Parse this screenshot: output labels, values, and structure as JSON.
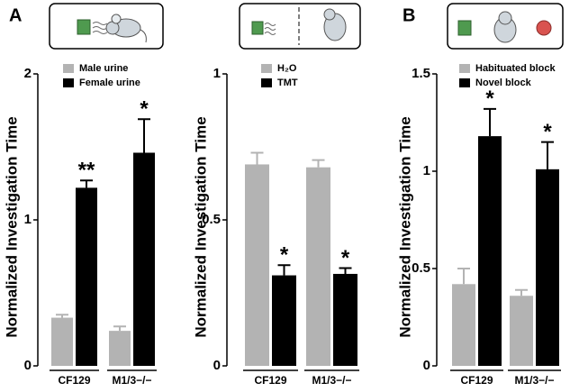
{
  "chart_data": [
    {
      "type": "bar",
      "panel": "A",
      "ylabel": "Normalized Investigation Time",
      "categories": [
        "CF129",
        "M1/3−/−"
      ],
      "series": [
        {
          "name": "Male urine",
          "color": "#b3b3b3",
          "values": [
            0.33,
            0.24
          ],
          "errors": [
            0.02,
            0.03
          ]
        },
        {
          "name": "Female urine",
          "color": "#000000",
          "values": [
            1.22,
            1.46
          ],
          "errors": [
            0.05,
            0.23
          ],
          "annotations": [
            "**",
            "*"
          ]
        }
      ],
      "ylim": [
        0,
        2
      ],
      "yticks": [
        0,
        1,
        2
      ]
    },
    {
      "type": "bar",
      "ylabel": "Normalized Investigation Time",
      "categories": [
        "CF129",
        "M1/3−/−"
      ],
      "series": [
        {
          "name": "H₂O",
          "color": "#b3b3b3",
          "values": [
            0.69,
            0.68
          ],
          "errors": [
            0.04,
            0.025
          ]
        },
        {
          "name": "TMT",
          "color": "#000000",
          "values": [
            0.31,
            0.315
          ],
          "errors": [
            0.035,
            0.02
          ],
          "annotations": [
            "*",
            "*"
          ]
        }
      ],
      "ylim": [
        0,
        1
      ],
      "yticks": [
        0,
        0.5,
        1
      ]
    },
    {
      "type": "bar",
      "panel": "B",
      "ylabel": "Normalized Investigation Time",
      "categories": [
        "CF129",
        "M1/3−/−"
      ],
      "series": [
        {
          "name": "Habituated block",
          "color": "#b3b3b3",
          "values": [
            0.42,
            0.36
          ],
          "errors": [
            0.08,
            0.03
          ]
        },
        {
          "name": "Novel block",
          "color": "#000000",
          "values": [
            1.18,
            1.01
          ],
          "errors": [
            0.14,
            0.14
          ],
          "annotations": [
            "*",
            "*"
          ]
        }
      ],
      "ylim": [
        0,
        1.5
      ],
      "yticks": [
        0,
        0.5,
        1,
        1.5
      ]
    }
  ]
}
